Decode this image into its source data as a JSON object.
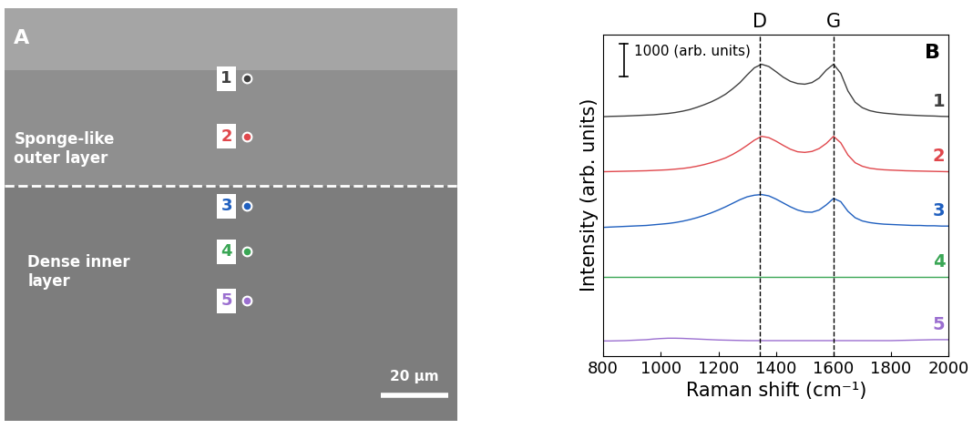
{
  "panel_a": {
    "label": "A",
    "regions": [
      "Sponge-like\nouter layer",
      "Dense inner\nlayer"
    ],
    "points": [
      "1",
      "2",
      "3",
      "4",
      "5"
    ],
    "scale_bar": "20 µm"
  },
  "chart_data": {
    "type": "line",
    "panel_label": "B",
    "x_label": "Raman shift (cm⁻¹)",
    "y_label": "Intensity (arb. units)",
    "xlim": [
      800,
      2000
    ],
    "xticks": [
      800,
      1000,
      1200,
      1400,
      1600,
      1800,
      2000
    ],
    "ylim": [
      0,
      10000
    ],
    "tick_labels": "x",
    "scale_bar": {
      "value": 1000,
      "label": "1000 (arb. units)"
    },
    "peaks": [
      {
        "label": "D",
        "x": 1345
      },
      {
        "label": "G",
        "x": 1600
      }
    ],
    "x": [
      800,
      825,
      850,
      875,
      900,
      925,
      950,
      975,
      1000,
      1025,
      1050,
      1075,
      1100,
      1125,
      1150,
      1175,
      1200,
      1225,
      1250,
      1275,
      1300,
      1325,
      1350,
      1375,
      1400,
      1425,
      1450,
      1475,
      1500,
      1525,
      1550,
      1575,
      1600,
      1625,
      1650,
      1675,
      1700,
      1725,
      1750,
      1775,
      1800,
      1825,
      1850,
      1875,
      1900,
      1925,
      1950,
      1975,
      2000
    ],
    "series": [
      {
        "name": "1",
        "color": "#404040",
        "values": [
          7440,
          7450,
          7455,
          7460,
          7470,
          7480,
          7490,
          7500,
          7520,
          7540,
          7570,
          7610,
          7660,
          7730,
          7810,
          7900,
          8010,
          8140,
          8310,
          8500,
          8740,
          8960,
          9070,
          9000,
          8840,
          8670,
          8540,
          8470,
          8450,
          8500,
          8640,
          8890,
          9070,
          8790,
          8240,
          7890,
          7720,
          7630,
          7580,
          7550,
          7530,
          7510,
          7495,
          7485,
          7475,
          7465,
          7460,
          7450,
          7445
        ]
      },
      {
        "name": "2",
        "color": "#e0474c",
        "values": [
          5730,
          5735,
          5740,
          5745,
          5750,
          5755,
          5760,
          5770,
          5780,
          5790,
          5810,
          5830,
          5860,
          5900,
          5950,
          6010,
          6080,
          6160,
          6270,
          6400,
          6550,
          6710,
          6830,
          6790,
          6680,
          6550,
          6430,
          6350,
          6330,
          6360,
          6450,
          6610,
          6830,
          6630,
          6250,
          6010,
          5900,
          5840,
          5810,
          5790,
          5780,
          5770,
          5760,
          5755,
          5750,
          5745,
          5740,
          5735,
          5730
        ]
      },
      {
        "name": "3",
        "color": "#1f5fbf",
        "values": [
          4000,
          4010,
          4020,
          4030,
          4040,
          4050,
          4060,
          4080,
          4100,
          4120,
          4150,
          4190,
          4240,
          4300,
          4370,
          4450,
          4540,
          4640,
          4750,
          4860,
          4950,
          5000,
          5020,
          4980,
          4880,
          4760,
          4640,
          4540,
          4480,
          4470,
          4540,
          4700,
          4900,
          4800,
          4500,
          4300,
          4200,
          4150,
          4120,
          4100,
          4090,
          4080,
          4070,
          4060,
          4060,
          4050,
          4050,
          4040,
          4040
        ]
      },
      {
        "name": "4",
        "color": "#3aa655",
        "values": [
          2450,
          2450,
          2450,
          2450,
          2450,
          2450,
          2450,
          2450,
          2450,
          2450,
          2450,
          2450,
          2450,
          2450,
          2450,
          2450,
          2450,
          2450,
          2450,
          2450,
          2450,
          2450,
          2450,
          2450,
          2450,
          2450,
          2450,
          2450,
          2450,
          2450,
          2450,
          2450,
          2450,
          2450,
          2450,
          2450,
          2450,
          2450,
          2450,
          2450,
          2450,
          2450,
          2450,
          2450,
          2450,
          2450,
          2450,
          2450,
          2450
        ]
      },
      {
        "name": "5",
        "color": "#9b6fd0",
        "values": [
          470,
          470,
          475,
          480,
          490,
          500,
          510,
          530,
          545,
          555,
          555,
          550,
          540,
          530,
          520,
          510,
          500,
          495,
          490,
          485,
          480,
          480,
          480,
          480,
          480,
          480,
          480,
          480,
          480,
          480,
          480,
          480,
          480,
          480,
          480,
          480,
          480,
          480,
          480,
          480,
          480,
          485,
          490,
          495,
          500,
          505,
          510,
          510,
          510
        ]
      }
    ]
  }
}
